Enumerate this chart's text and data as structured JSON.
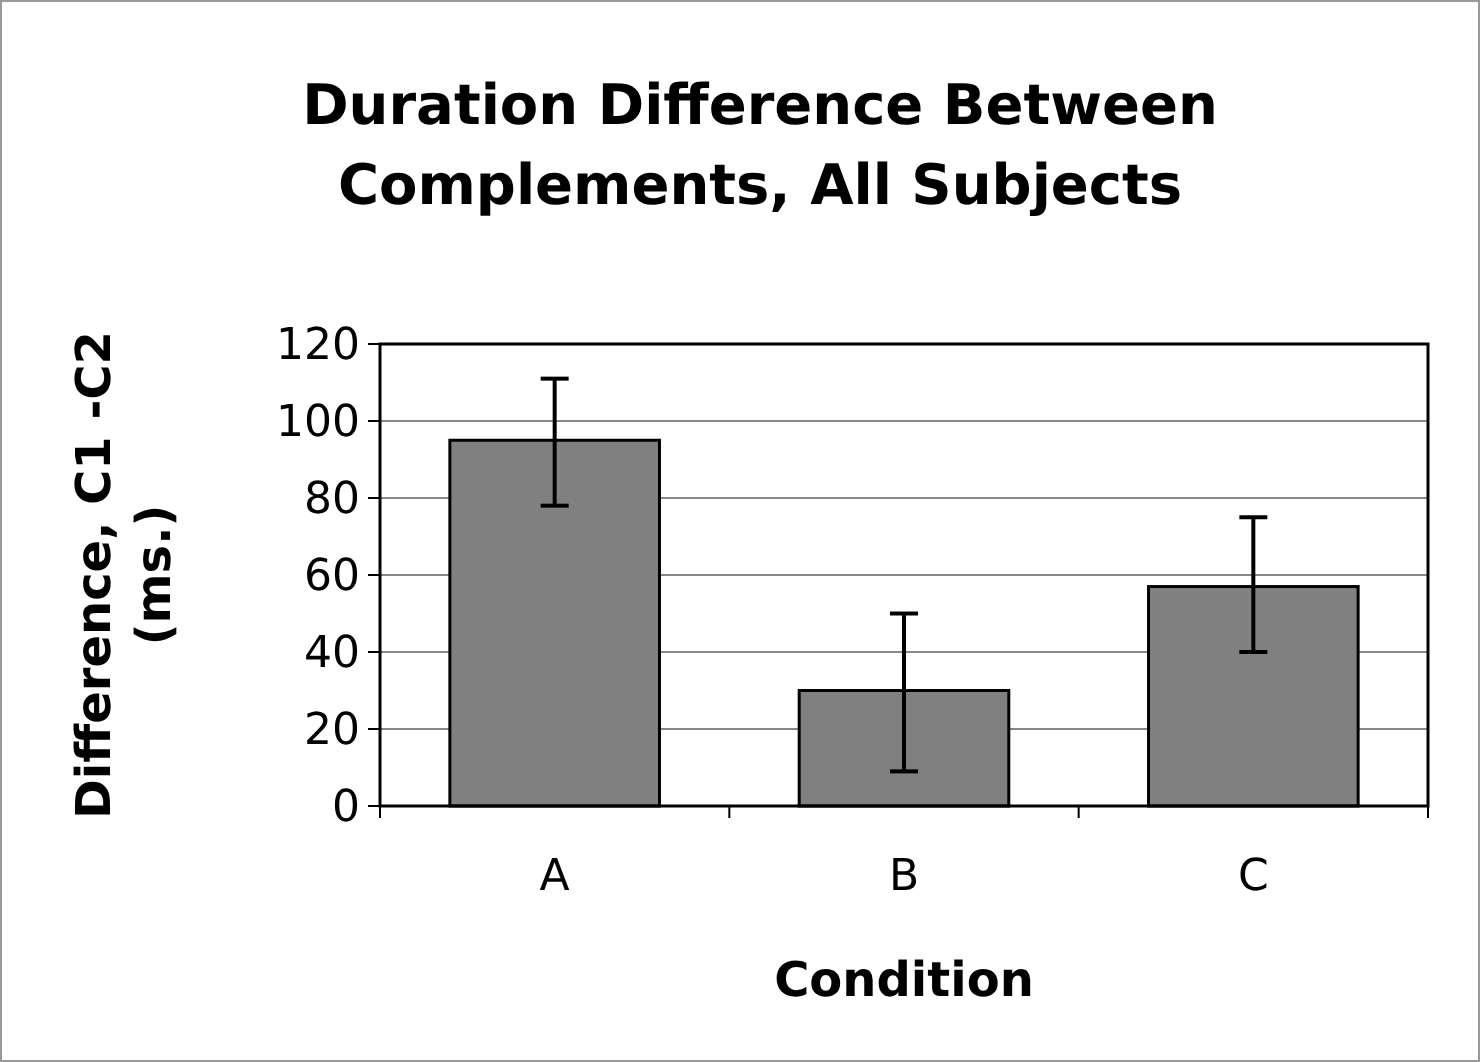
{
  "chart_data": {
    "type": "bar",
    "title": "Duration Difference Between Complements, All Subjects",
    "xlabel": "Condition",
    "ylabel": "Difference, C1 -C2 (ms.)",
    "categories": [
      "A",
      "B",
      "C"
    ],
    "series": [
      {
        "color": "#808080",
        "values": [
          95,
          30,
          57
        ],
        "errors": [
          [
            78,
            111
          ],
          [
            9,
            50
          ],
          [
            40,
            75
          ]
        ]
      }
    ],
    "ylim": [
      0,
      120
    ],
    "yticks": [
      0,
      20,
      40,
      60,
      80,
      100,
      120
    ],
    "grid": "y"
  }
}
